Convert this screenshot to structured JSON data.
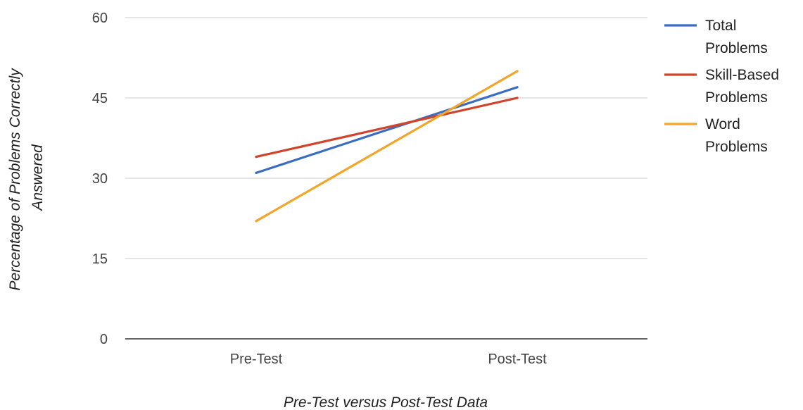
{
  "chart_data": {
    "type": "line",
    "categories": [
      "Pre-Test",
      "Post-Test"
    ],
    "series": [
      {
        "name": "Total Problems",
        "values": [
          31,
          47
        ],
        "color": "#3b6cc4",
        "legend_lines": [
          "Total",
          "Problems"
        ]
      },
      {
        "name": "Skill-Based Problems",
        "values": [
          34,
          45
        ],
        "color": "#d1432a",
        "legend_lines": [
          "Skill-Based",
          "Problems"
        ]
      },
      {
        "name": "Word Problems",
        "values": [
          22,
          50
        ],
        "color": "#f3a52a",
        "legend_lines": [
          "Word",
          "Problems"
        ]
      }
    ],
    "xlabel": "Pre-Test versus Post-Test Data",
    "ylabel_lines": [
      "Percentage of Problems Correctly",
      "Answered"
    ],
    "ylim": [
      0,
      60
    ],
    "yticks": [
      0,
      15,
      30,
      45,
      60
    ],
    "grid": true,
    "legend_position": "right"
  }
}
